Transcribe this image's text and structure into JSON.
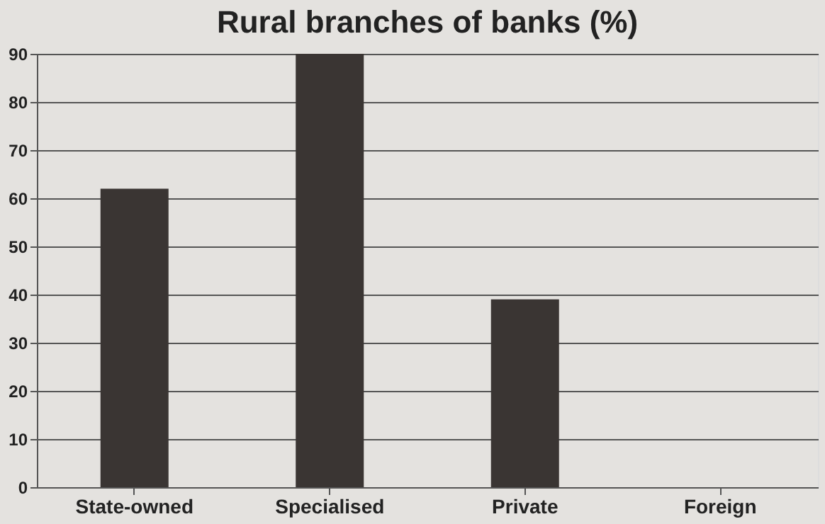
{
  "chart_data": {
    "type": "bar",
    "title": "Rural branches of banks (%)",
    "categories": [
      "State-owned",
      "Specialised",
      "Private",
      "Foreign"
    ],
    "values": [
      62,
      90,
      39,
      0
    ],
    "color": "#3a3533",
    "ylim": [
      0,
      90
    ],
    "yticks": [
      0,
      10,
      20,
      30,
      40,
      50,
      60,
      70,
      80,
      90
    ],
    "grid": "y"
  }
}
